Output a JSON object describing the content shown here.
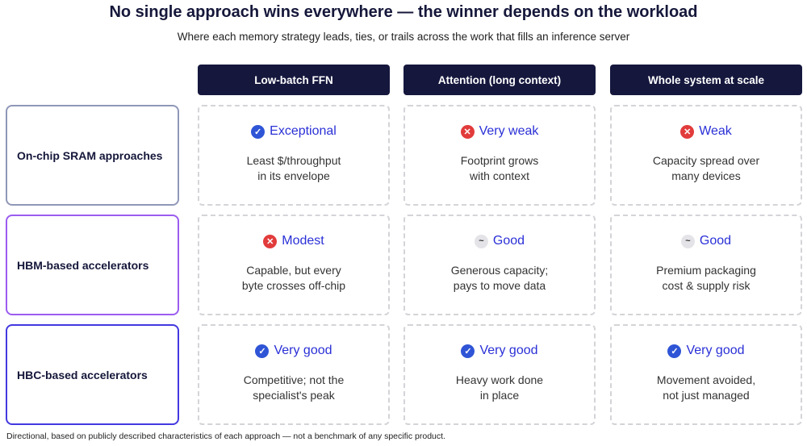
{
  "header": {
    "title": "No single approach wins everywhere — the winner depends on the workload",
    "subtitle": "Where each memory strategy leads, ties, or trails across the work that fills an inference server"
  },
  "columns": [
    "Low-batch FFN",
    "Attention (long context)",
    "Whole system at scale"
  ],
  "rows": [
    {
      "label": "On-chip SRAM approaches",
      "border": "#8f98b8",
      "cells": [
        {
          "rating": "Exceptional",
          "icon": "check",
          "lines": [
            "Least $/throughput",
            "in its envelope"
          ]
        },
        {
          "rating": "Very weak",
          "icon": "cross",
          "lines": [
            "Footprint grows",
            "with context"
          ]
        },
        {
          "rating": "Weak",
          "icon": "cross",
          "lines": [
            "Capacity spread over",
            "many devices"
          ]
        }
      ]
    },
    {
      "label": "HBM-based accelerators",
      "border": "#9b5cf0",
      "cells": [
        {
          "rating": "Modest",
          "icon": "cross",
          "lines": [
            "Capable, but every",
            "byte crosses off-chip"
          ]
        },
        {
          "rating": "Good",
          "icon": "neutral",
          "lines": [
            "Generous capacity;",
            "pays to move data"
          ]
        },
        {
          "rating": "Good",
          "icon": "neutral",
          "lines": [
            "Premium packaging",
            "cost & supply risk"
          ]
        }
      ]
    },
    {
      "label": "HBC-based accelerators",
      "border": "#4338e0",
      "cells": [
        {
          "rating": "Very good",
          "icon": "check",
          "lines": [
            "Competitive; not the",
            "specialist's peak"
          ]
        },
        {
          "rating": "Very good",
          "icon": "check",
          "lines": [
            "Heavy work done",
            "in place"
          ]
        },
        {
          "rating": "Very good",
          "icon": "check",
          "lines": [
            "Movement avoided,",
            "not just managed"
          ]
        }
      ]
    }
  ],
  "footnote": "Directional, based on publicly described characteristics of each approach — not a benchmark of any specific product."
}
